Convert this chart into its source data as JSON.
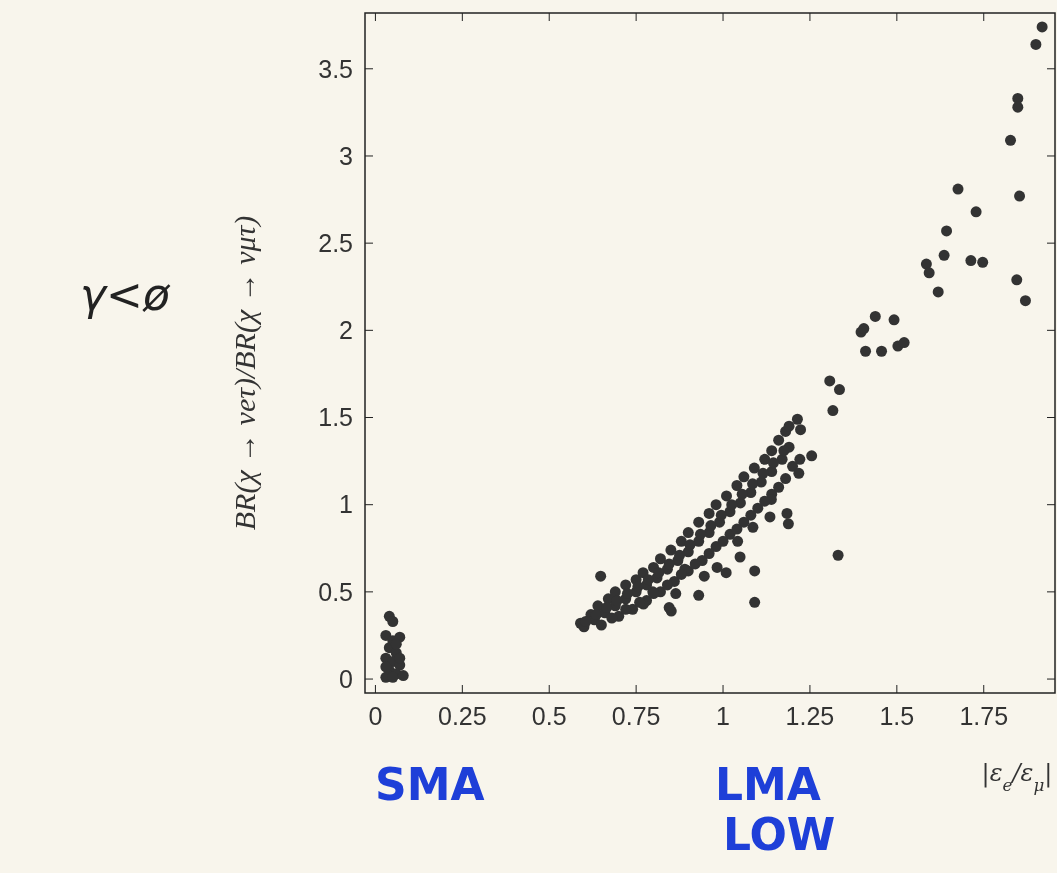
{
  "chart_data": {
    "type": "scatter",
    "xlabel": "|ε$_{e}$/ε$_{μ}$|",
    "ylabel": "BR(χ → νeτ)/BR(χ → νμτ)",
    "marker": "circle",
    "grid": false,
    "xlim": [
      -0.03,
      1.955
    ],
    "ylim": [
      -0.08,
      3.82
    ],
    "xticks": [
      0,
      0.25,
      {
        "value": 0.5,
        "label": "0.5"
      },
      0.75,
      1,
      1.25,
      {
        "value": 1.5,
        "label": "1.5"
      },
      1.75
    ],
    "yticks": [
      0,
      {
        "value": 0.5,
        "label": "0.5"
      },
      1,
      {
        "value": 1.5,
        "label": "1.5"
      },
      2,
      {
        "value": 2.5,
        "label": "2.5"
      },
      3,
      {
        "value": 3.5,
        "label": "3.5"
      }
    ],
    "annotations": [
      "SMA",
      "LMA LOW",
      "γ<ø"
    ],
    "series": [
      {
        "color": "#333333",
        "x": [
          0.04,
          0.05,
          0.03,
          0.05,
          0.07,
          0.04,
          0.06,
          0.03,
          0.05,
          0.07,
          0.04,
          0.06,
          0.03,
          0.05,
          0.08,
          0.07,
          0.03,
          0.06,
          0.59,
          0.62,
          0.64,
          0.67,
          0.69,
          0.72,
          0.75,
          0.77,
          0.8,
          0.82,
          0.85,
          0.88,
          0.9,
          0.93,
          0.96,
          0.98,
          1.01,
          1.04,
          1.06,
          1.09,
          1.12,
          1.14,
          1.16,
          1.18,
          1.19,
          0.6,
          0.63,
          0.66,
          0.69,
          0.72,
          0.75,
          0.78,
          0.81,
          0.84,
          0.87,
          0.9,
          0.93,
          0.96,
          0.99,
          1.02,
          1.05,
          1.08,
          1.11,
          1.14,
          1.17,
          1.19,
          0.65,
          0.7,
          0.74,
          0.78,
          0.82,
          0.86,
          0.9,
          0.94,
          0.98,
          1.02,
          1.06,
          1.1,
          1.14,
          1.18,
          1.2,
          0.771,
          0.851,
          0.845,
          0.864,
          0.93,
          0.946,
          0.983,
          1.009,
          1.049,
          1.091,
          1.091,
          1.086,
          1.135,
          1.184,
          1.188,
          1.218,
          1.221,
          1.223,
          1.139,
          0.648,
          0.798,
          0.89,
          1.042,
          1.918,
          1.9,
          1.848,
          1.848,
          1.827,
          1.853,
          1.676,
          1.728,
          1.643,
          1.636,
          1.713,
          1.747,
          1.585,
          1.593,
          1.619,
          1.845,
          1.87,
          1.438,
          1.492,
          1.397,
          1.405,
          1.41,
          1.456,
          1.503,
          1.521,
          1.307,
          1.335,
          1.316,
          1.331,
          1.255,
          1.214,
          0.605,
          0.635,
          0.665,
          0.695,
          0.725,
          0.755,
          0.785,
          0.815,
          0.845,
          0.875,
          0.905,
          0.935,
          0.965,
          0.995,
          1.025,
          1.055,
          1.085,
          1.115,
          1.145,
          1.175,
          0.68,
          0.72,
          0.76,
          0.8,
          0.84,
          0.88,
          0.92,
          0.96,
          1,
          1.04,
          1.08,
          1.12,
          1.16
        ],
        "values": [
          0.36,
          0.33,
          0.25,
          0.22,
          0.24,
          0.18,
          0.15,
          0.12,
          0.1,
          0.08,
          0.05,
          0.03,
          0.01,
          0.01,
          0.02,
          0.12,
          0.07,
          0.2,
          0.32,
          0.37,
          0.42,
          0.46,
          0.5,
          0.54,
          0.57,
          0.61,
          0.64,
          0.69,
          0.74,
          0.79,
          0.84,
          0.9,
          0.95,
          1,
          1.05,
          1.11,
          1.16,
          1.21,
          1.26,
          1.31,
          1.37,
          1.42,
          1.45,
          0.3,
          0.34,
          0.38,
          0.42,
          0.46,
          0.5,
          0.54,
          0.58,
          0.63,
          0.68,
          0.73,
          0.79,
          0.84,
          0.9,
          0.96,
          1.01,
          1.07,
          1.13,
          1.19,
          1.26,
          1.33,
          0.31,
          0.36,
          0.4,
          0.45,
          0.5,
          0.56,
          0.62,
          0.68,
          0.76,
          0.83,
          0.9,
          0.98,
          1.06,
          1.15,
          1.22,
          0.43,
          0.39,
          0.41,
          0.49,
          0.48,
          0.59,
          0.64,
          0.61,
          0.7,
          0.62,
          0.44,
          0.87,
          0.93,
          0.95,
          0.89,
          1.18,
          1.26,
          1.43,
          1.03,
          0.59,
          0.5,
          0.63,
          0.79,
          3.74,
          3.64,
          3.33,
          3.28,
          3.09,
          2.77,
          2.81,
          2.68,
          2.57,
          2.43,
          2.4,
          2.39,
          2.38,
          2.33,
          2.22,
          2.29,
          2.17,
          2.08,
          2.06,
          1.99,
          2.01,
          1.88,
          1.88,
          1.91,
          1.93,
          1.71,
          1.66,
          1.54,
          0.71,
          1.28,
          1.49,
          0.33,
          0.37,
          0.41,
          0.45,
          0.49,
          0.53,
          0.57,
          0.61,
          0.66,
          0.71,
          0.77,
          0.83,
          0.88,
          0.94,
          1,
          1.06,
          1.12,
          1.18,
          1.24,
          1.31,
          0.35,
          0.4,
          0.44,
          0.49,
          0.54,
          0.6,
          0.66,
          0.72,
          0.79,
          0.86,
          0.94,
          1.02,
          1.1
        ]
      }
    ]
  }
}
